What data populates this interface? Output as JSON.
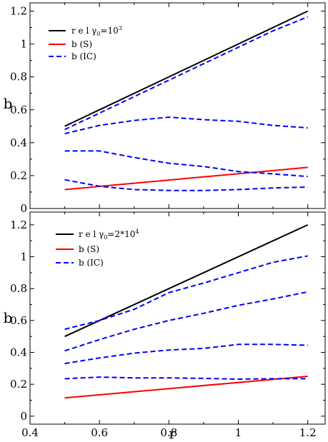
{
  "chart_data": [
    {
      "type": "line",
      "title": "",
      "xlabel": "",
      "ylabel": "b",
      "xlim": [
        0.4,
        1.25
      ],
      "ylim": [
        0,
        1.25
      ],
      "xticks": [],
      "yticks": [
        "0",
        "0.2",
        "0.4",
        "0.6",
        "0.8",
        "1",
        "1.2"
      ],
      "grid": false,
      "legend_position": "top-left",
      "legend": {
        "rel": {
          "label": "r e l ",
          "gamma": "γ",
          "sub": "0",
          "rest": "=10",
          "sup": "3"
        },
        "s": "b  (S)",
        "ic": "b (IC)"
      },
      "colors": {
        "rel": "#000000",
        "s": "#ff0000",
        "ic": "#0000ff"
      },
      "series": [
        {
          "key": "rel",
          "style": "solid",
          "x": [
            0.5,
            1.2
          ],
          "y": [
            0.5,
            1.2
          ]
        },
        {
          "key": "s",
          "style": "solid",
          "x": [
            0.5,
            1.2
          ],
          "y": [
            0.115,
            0.25
          ]
        },
        {
          "key": "ic",
          "style": "dashed",
          "x": [
            0.5,
            0.6,
            0.7,
            0.8,
            0.9,
            1.0,
            1.1,
            1.2
          ],
          "y": [
            0.48,
            0.58,
            0.68,
            0.78,
            0.88,
            0.98,
            1.08,
            1.165
          ]
        },
        {
          "key": "ic",
          "style": "dashed",
          "x": [
            0.5,
            0.6,
            0.7,
            0.8,
            0.9,
            1.0,
            1.1,
            1.2
          ],
          "y": [
            0.455,
            0.505,
            0.535,
            0.555,
            0.54,
            0.53,
            0.505,
            0.49
          ]
        },
        {
          "key": "ic",
          "style": "dashed",
          "x": [
            0.5,
            0.6,
            0.7,
            0.8,
            0.9,
            1.0,
            1.1,
            1.2
          ],
          "y": [
            0.35,
            0.35,
            0.31,
            0.275,
            0.255,
            0.225,
            0.21,
            0.195
          ]
        },
        {
          "key": "ic",
          "style": "dashed",
          "x": [
            0.5,
            0.6,
            0.7,
            0.8,
            0.9,
            1.0,
            1.1,
            1.2
          ],
          "y": [
            0.175,
            0.135,
            0.115,
            0.11,
            0.11,
            0.115,
            0.125,
            0.13
          ]
        }
      ]
    },
    {
      "type": "line",
      "title": "",
      "xlabel": "r",
      "ylabel": "b",
      "xlim": [
        0.4,
        1.25
      ],
      "ylim": [
        -0.05,
        1.28
      ],
      "xticks": [
        "0.4",
        "0.6",
        "0.8",
        "1",
        "1.2"
      ],
      "yticks": [
        "0",
        "0.2",
        "0.4",
        "0.6",
        "0.8",
        "1",
        "1.2"
      ],
      "grid": false,
      "legend_position": "top-left",
      "legend": {
        "rel": {
          "label": "r e l ",
          "gamma": "γ",
          "sub": "0",
          "rest": "=2*10",
          "sup": "4"
        },
        "s": "b (S)",
        "ic": "b (IC)"
      },
      "colors": {
        "rel": "#000000",
        "s": "#ff0000",
        "ic": "#0000ff"
      },
      "series": [
        {
          "key": "rel",
          "style": "solid",
          "x": [
            0.5,
            1.2
          ],
          "y": [
            0.5,
            1.2
          ]
        },
        {
          "key": "s",
          "style": "solid",
          "x": [
            0.5,
            1.2
          ],
          "y": [
            0.115,
            0.25
          ]
        },
        {
          "key": "ic",
          "style": "dashed",
          "x": [
            0.5,
            0.6,
            0.7,
            0.8,
            0.9,
            1.0,
            1.1,
            1.2
          ],
          "y": [
            0.545,
            0.6,
            0.67,
            0.775,
            0.835,
            0.9,
            0.965,
            1.005
          ]
        },
        {
          "key": "ic",
          "style": "dashed",
          "x": [
            0.5,
            0.6,
            0.7,
            0.8,
            0.9,
            1.0,
            1.1,
            1.2
          ],
          "y": [
            0.41,
            0.48,
            0.545,
            0.6,
            0.645,
            0.695,
            0.735,
            0.78
          ]
        },
        {
          "key": "ic",
          "style": "dashed",
          "x": [
            0.5,
            0.6,
            0.7,
            0.8,
            0.9,
            1.0,
            1.1,
            1.2
          ],
          "y": [
            0.33,
            0.365,
            0.395,
            0.415,
            0.425,
            0.45,
            0.45,
            0.445
          ]
        },
        {
          "key": "ic",
          "style": "dashed",
          "x": [
            0.5,
            0.6,
            0.7,
            0.8,
            0.9,
            1.0,
            1.1,
            1.2
          ],
          "y": [
            0.235,
            0.245,
            0.24,
            0.24,
            0.237,
            0.232,
            0.235,
            0.235
          ]
        }
      ]
    }
  ]
}
